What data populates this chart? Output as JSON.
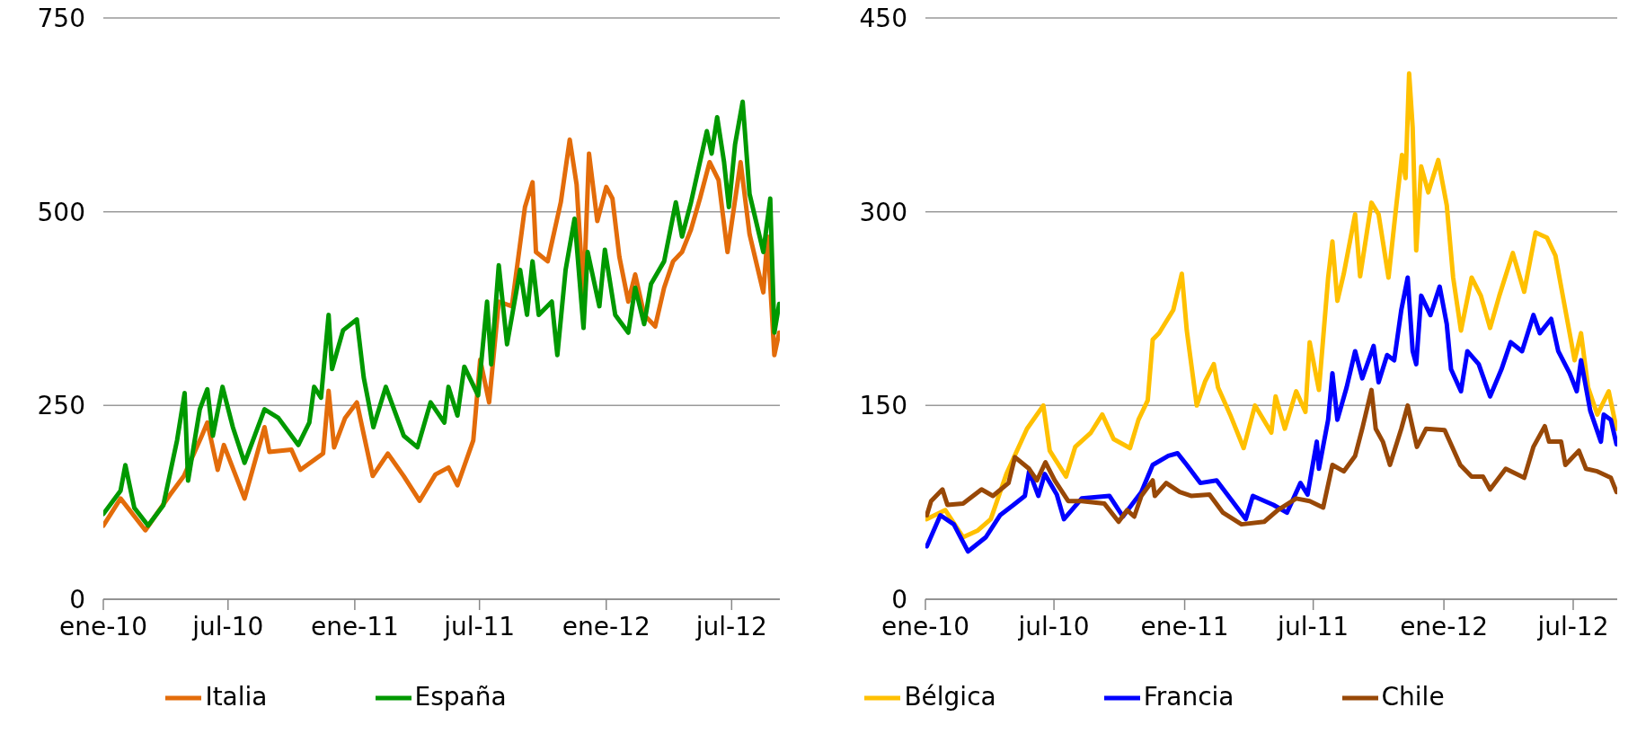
{
  "chart_data": [
    {
      "type": "line",
      "xlim": [
        "2010-01-01",
        "2012-09-09"
      ],
      "ylim": [
        0,
        750
      ],
      "yticks": [
        0,
        250,
        500,
        750
      ],
      "xticks": [
        {
          "value": "2010-01-01",
          "label": "ene-10"
        },
        {
          "value": "2010-07-01",
          "label": "jul-10"
        },
        {
          "value": "2011-01-01",
          "label": "ene-11"
        },
        {
          "value": "2011-07-01",
          "label": "jul-11"
        },
        {
          "value": "2012-01-01",
          "label": "ene-12"
        },
        {
          "value": "2012-07-01",
          "label": "jul-12"
        }
      ],
      "grid": "y",
      "legend": "bottom",
      "marker": "none",
      "line_style": "solid",
      "series": [
        {
          "name": "Italia",
          "color": "#e36c0a",
          "x": [
            "2010-01-01",
            "2010-01-26",
            "2010-03-03",
            "2010-04-08",
            "2010-04-28",
            "2010-05-24",
            "2010-06-01",
            "2010-06-16",
            "2010-06-25",
            "2010-07-25",
            "2010-08-23",
            "2010-08-30",
            "2010-10-01",
            "2010-10-14",
            "2010-11-16",
            "2010-11-24",
            "2010-12-02",
            "2010-12-18",
            "2011-01-04",
            "2011-01-27",
            "2011-02-18",
            "2011-03-13",
            "2011-04-05",
            "2011-04-28",
            "2011-05-17",
            "2011-05-30",
            "2011-06-22",
            "2011-07-02",
            "2011-07-15",
            "2011-07-29",
            "2011-08-17",
            "2011-09-05",
            "2011-09-16",
            "2011-09-21",
            "2011-10-08",
            "2011-10-27",
            "2011-11-09",
            "2011-11-19",
            "2011-11-29",
            "2011-12-07",
            "2011-12-19",
            "2012-01-01",
            "2012-01-10",
            "2012-01-20",
            "2012-02-02",
            "2012-02-12",
            "2012-02-25",
            "2012-03-12",
            "2012-03-25",
            "2012-04-07",
            "2012-04-20",
            "2012-05-03",
            "2012-05-16",
            "2012-05-30",
            "2012-06-12",
            "2012-06-25",
            "2012-07-14",
            "2012-07-27",
            "2012-08-16",
            "2012-08-22",
            "2012-09-01",
            "2012-09-08"
          ],
          "values": [
            95,
            130,
            89,
            135,
            159,
            211,
            228,
            167,
            199,
            130,
            222,
            190,
            193,
            167,
            188,
            269,
            196,
            234,
            254,
            159,
            188,
            159,
            127,
            161,
            170,
            147,
            205,
            309,
            254,
            384,
            378,
            506,
            538,
            448,
            436,
            512,
            593,
            535,
            390,
            575,
            488,
            532,
            517,
            442,
            384,
            419,
            367,
            352,
            402,
            436,
            448,
            477,
            517,
            564,
            541,
            448,
            564,
            471,
            396,
            468,
            315,
            344
          ]
        },
        {
          "name": "España",
          "color": "#009900",
          "x": [
            "2010-01-01",
            "2010-01-26",
            "2010-02-02",
            "2010-02-15",
            "2010-03-07",
            "2010-03-29",
            "2010-04-18",
            "2010-04-29",
            "2010-05-04",
            "2010-05-21",
            "2010-06-01",
            "2010-06-09",
            "2010-06-23",
            "2010-07-08",
            "2010-07-25",
            "2010-08-23",
            "2010-09-12",
            "2010-10-11",
            "2010-10-27",
            "2010-11-03",
            "2010-11-13",
            "2010-11-24",
            "2010-11-29",
            "2010-12-15",
            "2011-01-04",
            "2011-01-14",
            "2011-01-28",
            "2011-02-15",
            "2011-03-13",
            "2011-04-02",
            "2011-04-21",
            "2011-05-11",
            "2011-05-17",
            "2011-05-30",
            "2011-06-09",
            "2011-06-29",
            "2011-07-12",
            "2011-07-18",
            "2011-07-29",
            "2011-08-10",
            "2011-08-29",
            "2011-09-08",
            "2011-09-16",
            "2011-09-25",
            "2011-10-14",
            "2011-10-22",
            "2011-11-03",
            "2011-11-16",
            "2011-11-29",
            "2011-12-05",
            "2011-12-22",
            "2011-12-30",
            "2012-01-14",
            "2012-02-02",
            "2012-02-12",
            "2012-02-25",
            "2012-03-06",
            "2012-03-25",
            "2012-04-11",
            "2012-04-20",
            "2012-05-03",
            "2012-05-13",
            "2012-05-26",
            "2012-06-02",
            "2012-06-10",
            "2012-06-20",
            "2012-06-27",
            "2012-07-06",
            "2012-07-17",
            "2012-07-27",
            "2012-08-16",
            "2012-08-26",
            "2012-09-01",
            "2012-09-08"
          ],
          "values": [
            110,
            140,
            173,
            118,
            95,
            121,
            205,
            266,
            153,
            245,
            271,
            211,
            274,
            222,
            176,
            245,
            234,
            199,
            228,
            274,
            260,
            367,
            297,
            347,
            361,
            286,
            222,
            274,
            211,
            196,
            254,
            228,
            274,
            237,
            300,
            263,
            384,
            303,
            431,
            329,
            425,
            367,
            436,
            367,
            384,
            315,
            425,
            491,
            350,
            448,
            378,
            451,
            367,
            344,
            402,
            355,
            407,
            436,
            512,
            468,
            512,
            552,
            604,
            575,
            622,
            564,
            506,
            587,
            642,
            523,
            448,
            517,
            344,
            381
          ]
        }
      ]
    },
    {
      "type": "line",
      "xlim": [
        "2010-01-01",
        "2012-09-01"
      ],
      "ylim": [
        0,
        450
      ],
      "yticks": [
        0,
        150,
        300,
        450
      ],
      "xticks": [
        {
          "value": "2010-01-01",
          "label": "ene-10"
        },
        {
          "value": "2010-07-01",
          "label": "jul-10"
        },
        {
          "value": "2011-01-01",
          "label": "ene-11"
        },
        {
          "value": "2011-07-01",
          "label": "jul-11"
        },
        {
          "value": "2012-01-01",
          "label": "ene-12"
        },
        {
          "value": "2012-07-01",
          "label": "jul-12"
        }
      ],
      "grid": "y",
      "legend": "bottom",
      "marker": "none",
      "line_style": "solid",
      "series": [
        {
          "name": "Bélgica",
          "color": "#ffc000",
          "x": [
            "2010-01-03",
            "2010-01-29",
            "2010-02-23",
            "2010-03-15",
            "2010-04-03",
            "2010-04-25",
            "2010-05-24",
            "2010-06-16",
            "2010-06-25",
            "2010-07-18",
            "2010-07-31",
            "2010-08-22",
            "2010-09-07",
            "2010-09-23",
            "2010-10-16",
            "2010-10-28",
            "2010-11-10",
            "2010-11-17",
            "2010-11-26",
            "2010-12-16",
            "2010-12-28",
            "2011-01-04",
            "2011-01-18",
            "2011-01-30",
            "2011-02-11",
            "2011-02-17",
            "2011-03-06",
            "2011-03-25",
            "2011-04-10",
            "2011-05-03",
            "2011-05-09",
            "2011-05-22",
            "2011-06-07",
            "2011-06-20",
            "2011-06-26",
            "2011-07-09",
            "2011-07-22",
            "2011-07-28",
            "2011-08-04",
            "2011-08-13",
            "2011-08-29",
            "2011-09-05",
            "2011-09-21",
            "2011-10-01",
            "2011-10-15",
            "2011-10-26",
            "2011-11-03",
            "2011-11-08",
            "2011-11-13",
            "2011-11-18",
            "2011-11-23",
            "2011-11-30",
            "2011-12-10",
            "2011-12-24",
            "2012-01-05",
            "2012-01-14",
            "2012-01-25",
            "2012-02-09",
            "2012-02-22",
            "2012-03-06",
            "2012-03-19",
            "2012-04-07",
            "2012-04-23",
            "2012-05-09",
            "2012-05-25",
            "2012-06-06",
            "2012-06-19",
            "2012-07-03",
            "2012-07-12",
            "2012-07-22",
            "2012-08-04",
            "2012-08-20",
            "2012-08-31"
          ],
          "values": [
            62,
            69,
            48,
            53,
            62,
            97,
            132,
            150,
            115,
            95,
            118,
            129,
            143,
            124,
            117,
            139,
            154,
            201,
            206,
            224,
            252,
            208,
            150,
            169,
            182,
            164,
            143,
            117,
            150,
            129,
            157,
            132,
            161,
            145,
            199,
            162,
            249,
            277,
            231,
            252,
            298,
            250,
            307,
            298,
            249,
            305,
            344,
            326,
            407,
            365,
            270,
            335,
            315,
            340,
            305,
            249,
            208,
            249,
            235,
            210,
            235,
            268,
            238,
            284,
            280,
            266,
            227,
            185,
            206,
            164,
            143,
            161,
            132
          ]
        },
        {
          "name": "Francia",
          "color": "#0000ff",
          "x": [
            "2010-01-03",
            "2010-01-22",
            "2010-02-10",
            "2010-03-02",
            "2010-03-27",
            "2010-04-16",
            "2010-05-05",
            "2010-05-21",
            "2010-05-27",
            "2010-06-09",
            "2010-06-18",
            "2010-07-05",
            "2010-07-15",
            "2010-08-09",
            "2010-09-17",
            "2010-10-06",
            "2010-11-01",
            "2010-11-17",
            "2010-12-09",
            "2010-12-22",
            "2011-01-04",
            "2011-01-23",
            "2011-02-15",
            "2011-03-09",
            "2011-03-28",
            "2011-04-07",
            "2011-05-06",
            "2011-05-25",
            "2011-06-13",
            "2011-06-23",
            "2011-07-06",
            "2011-07-09",
            "2011-07-22",
            "2011-07-28",
            "2011-08-04",
            "2011-08-17",
            "2011-08-29",
            "2011-09-08",
            "2011-09-24",
            "2011-10-01",
            "2011-10-13",
            "2011-10-23",
            "2011-11-02",
            "2011-11-11",
            "2011-11-18",
            "2011-11-23",
            "2011-11-30",
            "2011-12-13",
            "2011-12-26",
            "2012-01-05",
            "2012-01-11",
            "2012-01-25",
            "2012-02-03",
            "2012-02-19",
            "2012-03-06",
            "2012-03-22",
            "2012-04-04",
            "2012-04-20",
            "2012-05-06",
            "2012-05-15",
            "2012-05-31",
            "2012-06-10",
            "2012-06-26",
            "2012-07-06",
            "2012-07-12",
            "2012-07-25",
            "2012-08-09",
            "2012-08-13",
            "2012-08-23",
            "2012-08-31"
          ],
          "values": [
            41,
            65,
            58,
            37,
            48,
            65,
            73,
            80,
            99,
            80,
            97,
            81,
            62,
            78,
            80,
            64,
            83,
            104,
            111,
            113,
            104,
            90,
            92,
            76,
            62,
            80,
            73,
            67,
            90,
            81,
            122,
            101,
            139,
            175,
            139,
            164,
            192,
            171,
            196,
            168,
            189,
            185,
            224,
            249,
            192,
            182,
            235,
            220,
            242,
            213,
            178,
            161,
            192,
            182,
            157,
            178,
            199,
            192,
            220,
            206,
            217,
            192,
            175,
            161,
            185,
            146,
            122,
            143,
            139,
            120
          ]
        },
        {
          "name": "Chile",
          "color": "#984807",
          "x": [
            "2010-01-03",
            "2010-01-09",
            "2010-01-25",
            "2010-02-01",
            "2010-02-23",
            "2010-03-21",
            "2010-04-06",
            "2010-04-28",
            "2010-05-07",
            "2010-05-27",
            "2010-06-07",
            "2010-06-19",
            "2010-07-02",
            "2010-07-21",
            "2010-08-09",
            "2010-09-10",
            "2010-09-30",
            "2010-10-12",
            "2010-10-22",
            "2010-11-01",
            "2010-11-17",
            "2010-11-20",
            "2010-12-06",
            "2010-12-25",
            "2011-01-10",
            "2011-02-05",
            "2011-02-24",
            "2011-03-22",
            "2011-04-23",
            "2011-05-12",
            "2011-06-07",
            "2011-06-26",
            "2011-07-15",
            "2011-07-28",
            "2011-08-13",
            "2011-08-29",
            "2011-09-08",
            "2011-09-21",
            "2011-09-27",
            "2011-10-07",
            "2011-10-17",
            "2011-11-02",
            "2011-11-11",
            "2011-11-24",
            "2011-12-07",
            "2012-01-02",
            "2012-01-24",
            "2012-02-09",
            "2012-02-25",
            "2012-03-06",
            "2012-03-28",
            "2012-04-23",
            "2012-05-06",
            "2012-05-22",
            "2012-05-28",
            "2012-06-14",
            "2012-06-20",
            "2012-07-09",
            "2012-07-19",
            "2012-08-04",
            "2012-08-23",
            "2012-08-31"
          ],
          "values": [
            65,
            76,
            85,
            73,
            74,
            85,
            80,
            90,
            110,
            101,
            92,
            106,
            92,
            76,
            76,
            74,
            60,
            69,
            64,
            80,
            92,
            80,
            90,
            83,
            80,
            81,
            67,
            58,
            60,
            69,
            78,
            76,
            71,
            104,
            99,
            111,
            132,
            162,
            132,
            122,
            104,
            132,
            150,
            118,
            132,
            131,
            104,
            95,
            95,
            85,
            101,
            94,
            118,
            134,
            122,
            122,
            104,
            115,
            101,
            99,
            94,
            83
          ]
        }
      ]
    }
  ]
}
